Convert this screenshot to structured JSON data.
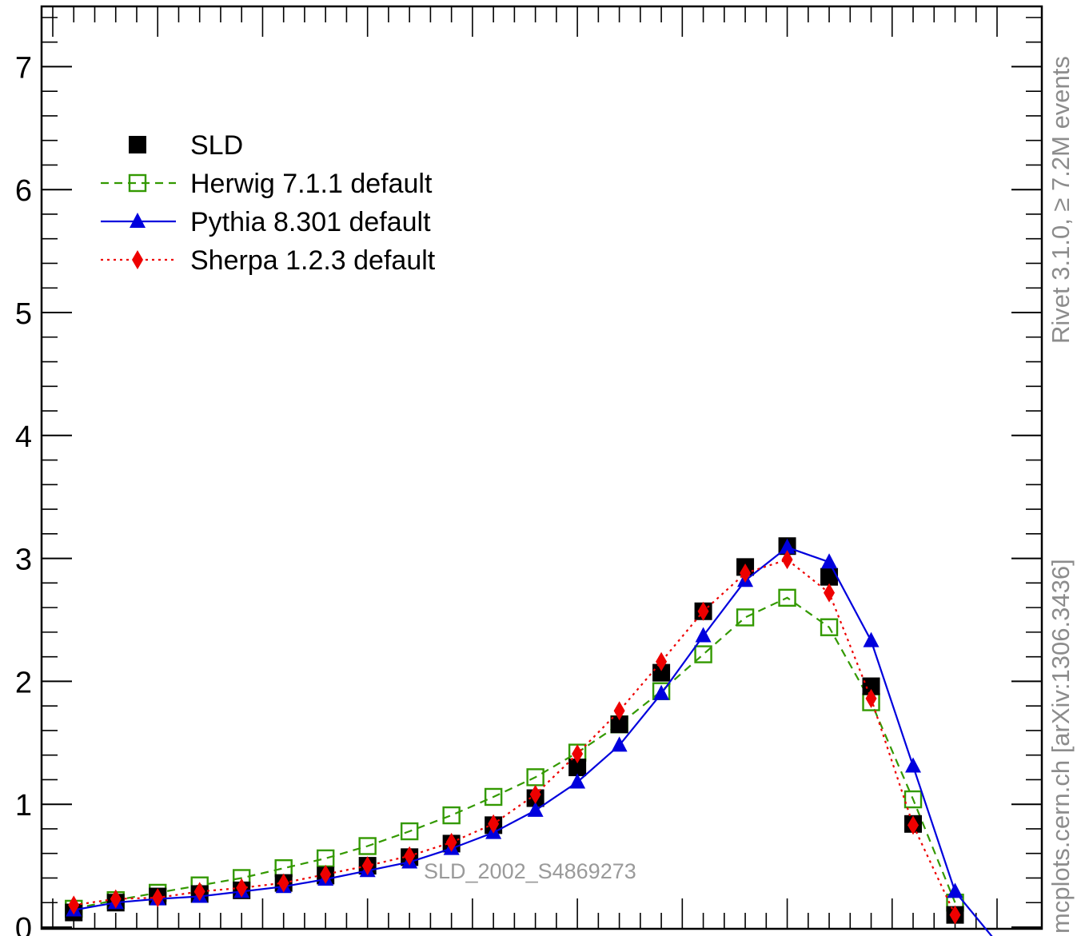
{
  "chart_data": {
    "type": "line",
    "title": "",
    "xlabel": "",
    "ylabel": "",
    "ylim": [
      0,
      7.5
    ],
    "y_ticks": [
      "0",
      "1",
      "2",
      "3",
      "4",
      "5",
      "6",
      "7"
    ],
    "x": [
      0.02,
      0.06,
      0.1,
      0.14,
      0.18,
      0.22,
      0.26,
      0.3,
      0.34,
      0.38,
      0.42,
      0.46,
      0.5,
      0.54,
      0.58,
      0.62,
      0.66,
      0.7,
      0.74,
      0.78,
      0.82,
      0.86
    ],
    "series": [
      {
        "name": "SLD",
        "color": "#000000",
        "marker": "filled-square",
        "line": "none",
        "values": [
          0.12,
          0.2,
          0.25,
          0.27,
          0.3,
          0.36,
          0.42,
          0.5,
          0.57,
          0.68,
          0.83,
          1.05,
          1.3,
          1.65,
          2.07,
          2.57,
          2.93,
          3.1,
          2.85,
          1.96,
          0.84,
          0.1
        ]
      },
      {
        "name": "Herwig 7.1.1 default",
        "color": "#339900",
        "marker": "open-square",
        "line": "dashed",
        "values": [
          0.15,
          0.22,
          0.28,
          0.34,
          0.4,
          0.48,
          0.56,
          0.66,
          0.78,
          0.91,
          1.06,
          1.22,
          1.42,
          1.65,
          1.92,
          2.22,
          2.52,
          2.68,
          2.44,
          1.83,
          1.04,
          0.2
        ]
      },
      {
        "name": "Pythia 8.301 default",
        "color": "#0000dd",
        "marker": "filled-triangle",
        "line": "solid",
        "values": [
          0.14,
          0.2,
          0.23,
          0.25,
          0.29,
          0.33,
          0.39,
          0.46,
          0.53,
          0.64,
          0.77,
          0.95,
          1.18,
          1.48,
          1.9,
          2.37,
          2.82,
          3.09,
          2.97,
          2.33,
          1.31,
          0.29
        ]
      },
      {
        "name": "Sherpa 1.2.3 default",
        "color": "#ee0000",
        "marker": "filled-diamond",
        "line": "dotted",
        "values": [
          0.18,
          0.23,
          0.24,
          0.29,
          0.32,
          0.36,
          0.43,
          0.5,
          0.58,
          0.69,
          0.84,
          1.08,
          1.41,
          1.76,
          2.16,
          2.57,
          2.88,
          2.99,
          2.72,
          1.86,
          0.83,
          0.1
        ]
      }
    ],
    "legend_position": "top-left",
    "analysis_label": "SLD_2002_S4869273",
    "side_text_top": "Rivet 3.1.0, ≥ 7.2M events",
    "side_text_bottom": "mcplots.cern.ch [arXiv:1306.3436]",
    "grid": false
  }
}
